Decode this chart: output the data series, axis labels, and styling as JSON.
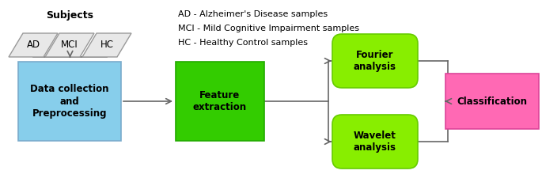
{
  "subjects_label": "Subjects",
  "parallelogram_labels": [
    "AD",
    "MCI",
    "HC"
  ],
  "legend_lines": [
    "AD - Alzheimer's Disease samples",
    "MCI - Mild Cognitive Impairment samples",
    "HC - Healthy Control samples"
  ],
  "box_data_collection": {
    "label": "Data collection\nand\nPreprocessing",
    "color": "#87CEEB",
    "edgecolor": "#7aabcc"
  },
  "box_feature": {
    "label": "Feature\nextraction",
    "color": "#33CC00",
    "edgecolor": "#22aa00"
  },
  "box_fourier": {
    "label": "Fourier\nanalysis",
    "color": "#88EE00",
    "edgecolor": "#66cc00"
  },
  "box_wavelet": {
    "label": "Wavelet\nanalysis",
    "color": "#88EE00",
    "edgecolor": "#66cc00"
  },
  "box_classification": {
    "label": "Classification",
    "color": "#FF69B4",
    "edgecolor": "#dd4499"
  },
  "para_facecolor": "#e8e8e8",
  "para_edgecolor": "#999999",
  "bg_color": "#ffffff",
  "arrow_color": "#666666",
  "line_color": "#666666",
  "text_color": "#000000",
  "font_size_box": 8.5,
  "font_size_legend": 8,
  "font_size_subjects": 9,
  "font_size_para": 8.5
}
